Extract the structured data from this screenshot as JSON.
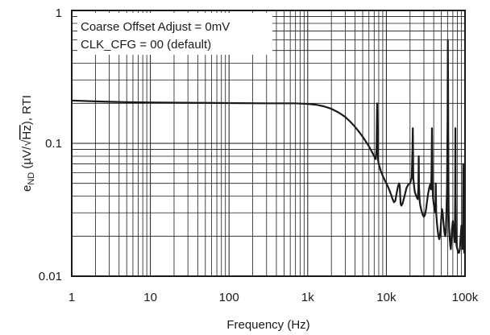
{
  "chart_data": {
    "type": "line",
    "title": "",
    "xlabel": "Frequency (Hz)",
    "ylabel": {
      "prefix": "e",
      "sub": "ND",
      "open": " (µV/√",
      "over": "Hz",
      "close": "), RTI"
    },
    "xscale": "log",
    "yscale": "log",
    "xlim": [
      1,
      100000
    ],
    "ylim": [
      0.01,
      1
    ],
    "xticks": [
      1,
      10,
      100,
      1000,
      10000,
      100000
    ],
    "xtick_labels": [
      "1",
      "10",
      "100",
      "1k",
      "10k",
      "100k"
    ],
    "yticks": [
      0.01,
      0.1,
      1
    ],
    "ytick_labels": [
      "0.01",
      "0.1",
      "1"
    ],
    "grid": true,
    "legend_placement": "top-left",
    "annotations": [
      "Coarse Offset Adjust = 0mV",
      "CLK_CFG = 00 (default)"
    ],
    "series": [
      {
        "x": [
          1,
          2,
          5,
          10,
          30,
          100,
          300,
          700,
          1000,
          1300,
          1600,
          2000,
          2500,
          3000,
          3500,
          4000,
          4500,
          5000,
          5500,
          6000,
          6500,
          7000,
          7300,
          7500,
          7600,
          7650,
          7800,
          8000,
          8500,
          9000,
          9500,
          10000,
          10500,
          11000,
          11500,
          12000,
          12500,
          13000,
          13500,
          14000,
          14500,
          14800,
          15000,
          15200,
          15500,
          16000,
          17000,
          18000,
          19000,
          20000,
          21000,
          21500,
          21700,
          22000,
          22500,
          23000,
          24000,
          25000,
          25500,
          25800,
          26000,
          26500,
          27000,
          28000,
          29000,
          30000,
          31000,
          32000,
          33000,
          34000,
          35000,
          36000,
          37000,
          37500,
          38000,
          38500,
          39000,
          40000,
          41000,
          42000,
          42500,
          43000,
          44000,
          45000,
          46000,
          47000,
          48000,
          49000,
          50000,
          51000,
          52000,
          53000,
          54000,
          55000,
          56000,
          57000,
          58000,
          59000,
          60000,
          60500,
          61000,
          61500,
          62000,
          63000,
          64000,
          65000,
          66000,
          67000,
          68000,
          70000,
          72000,
          74000,
          75000,
          75500,
          76000,
          77000,
          78000,
          80000,
          82000,
          84000,
          86000,
          88000,
          90000,
          92000,
          93000,
          94000,
          95000,
          96000,
          97000,
          98000,
          99000,
          100000
        ],
        "y": [
          0.21,
          0.207,
          0.204,
          0.203,
          0.202,
          0.201,
          0.2,
          0.2,
          0.198,
          0.195,
          0.19,
          0.182,
          0.17,
          0.158,
          0.145,
          0.133,
          0.122,
          0.112,
          0.103,
          0.095,
          0.087,
          0.08,
          0.076,
          0.09,
          0.17,
          0.2,
          0.076,
          0.07,
          0.062,
          0.057,
          0.053,
          0.05,
          0.047,
          0.044,
          0.041,
          0.038,
          0.036,
          0.037,
          0.042,
          0.047,
          0.05,
          0.048,
          0.04,
          0.035,
          0.034,
          0.035,
          0.04,
          0.046,
          0.049,
          0.05,
          0.055,
          0.09,
          0.13,
          0.055,
          0.048,
          0.043,
          0.04,
          0.038,
          0.045,
          0.08,
          0.048,
          0.037,
          0.034,
          0.031,
          0.029,
          0.028,
          0.029,
          0.032,
          0.037,
          0.042,
          0.046,
          0.049,
          0.045,
          0.06,
          0.13,
          0.055,
          0.04,
          0.035,
          0.032,
          0.03,
          0.05,
          0.03,
          0.025,
          0.022,
          0.02,
          0.019,
          0.02,
          0.023,
          0.028,
          0.032,
          0.03,
          0.026,
          0.023,
          0.021,
          0.02,
          0.021,
          0.03,
          0.045,
          0.16,
          0.6,
          0.22,
          0.06,
          0.03,
          0.022,
          0.019,
          0.017,
          0.016,
          0.018,
          0.022,
          0.026,
          0.022,
          0.018,
          0.04,
          0.13,
          0.042,
          0.02,
          0.017,
          0.016,
          0.015,
          0.015,
          0.016,
          0.02,
          0.024,
          0.019,
          0.016,
          0.025,
          0.07,
          0.03,
          0.018,
          0.015,
          0.015,
          0.016
        ]
      }
    ]
  }
}
